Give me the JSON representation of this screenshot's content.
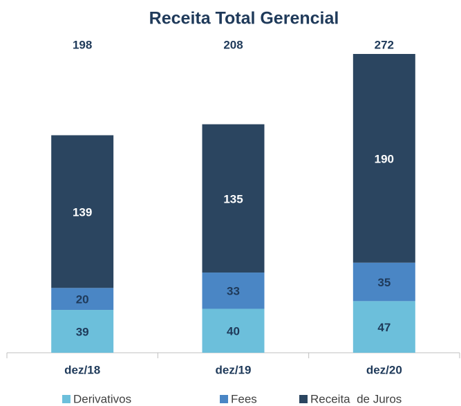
{
  "chart_data": {
    "type": "stacked_bar",
    "title": "Receita Total Gerencial",
    "categories": [
      "dez/18",
      "dez/19",
      "dez/20"
    ],
    "series": [
      {
        "name": "Derivativos",
        "color": "#6cbfdb",
        "values": [
          39,
          40,
          47
        ]
      },
      {
        "name": "Fees",
        "color": "#4a86c5",
        "values": [
          20,
          33,
          35
        ]
      },
      {
        "name": "Receita  de Juros",
        "color": "#2b4560",
        "values": [
          139,
          135,
          190
        ]
      }
    ],
    "totals": [
      198,
      208,
      272
    ],
    "legend": "bottom"
  }
}
